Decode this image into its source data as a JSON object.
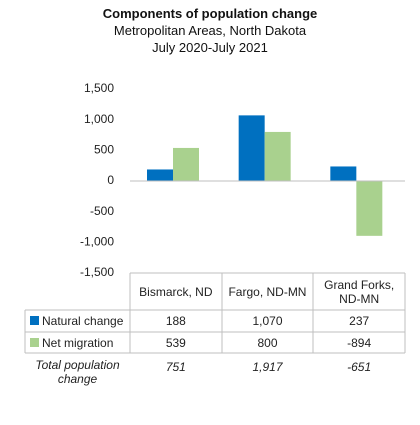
{
  "chart_data": {
    "type": "bar",
    "title": "Components of population change",
    "subtitle": [
      "Metropolitan Areas, North Dakota",
      "July 2020-July 2021"
    ],
    "categories": [
      "Bismarck, ND",
      "Fargo, ND-MN",
      "Grand Forks, ND-MN"
    ],
    "series": [
      {
        "name": "Natural change",
        "color": "#0070c0",
        "values": [
          188,
          1070,
          237
        ],
        "value_labels": [
          "188",
          "1,070",
          "237"
        ]
      },
      {
        "name": "Net migration",
        "color": "#a9d18e",
        "values": [
          539,
          800,
          -894
        ],
        "value_labels": [
          "539",
          "800",
          "-894"
        ]
      }
    ],
    "total_row": {
      "label": "Total population change",
      "values": [
        751,
        1917,
        -651
      ],
      "value_labels": [
        "751",
        "1,917",
        "-651"
      ]
    },
    "ylim": [
      -1500,
      1500
    ],
    "yticks": [
      {
        "value": -1500,
        "label": "-1,500"
      },
      {
        "value": -1000,
        "label": "-1,000"
      },
      -500,
      0,
      500,
      {
        "value": 1000,
        "label": "1,000"
      },
      {
        "value": 1500,
        "label": "1,500"
      }
    ]
  }
}
